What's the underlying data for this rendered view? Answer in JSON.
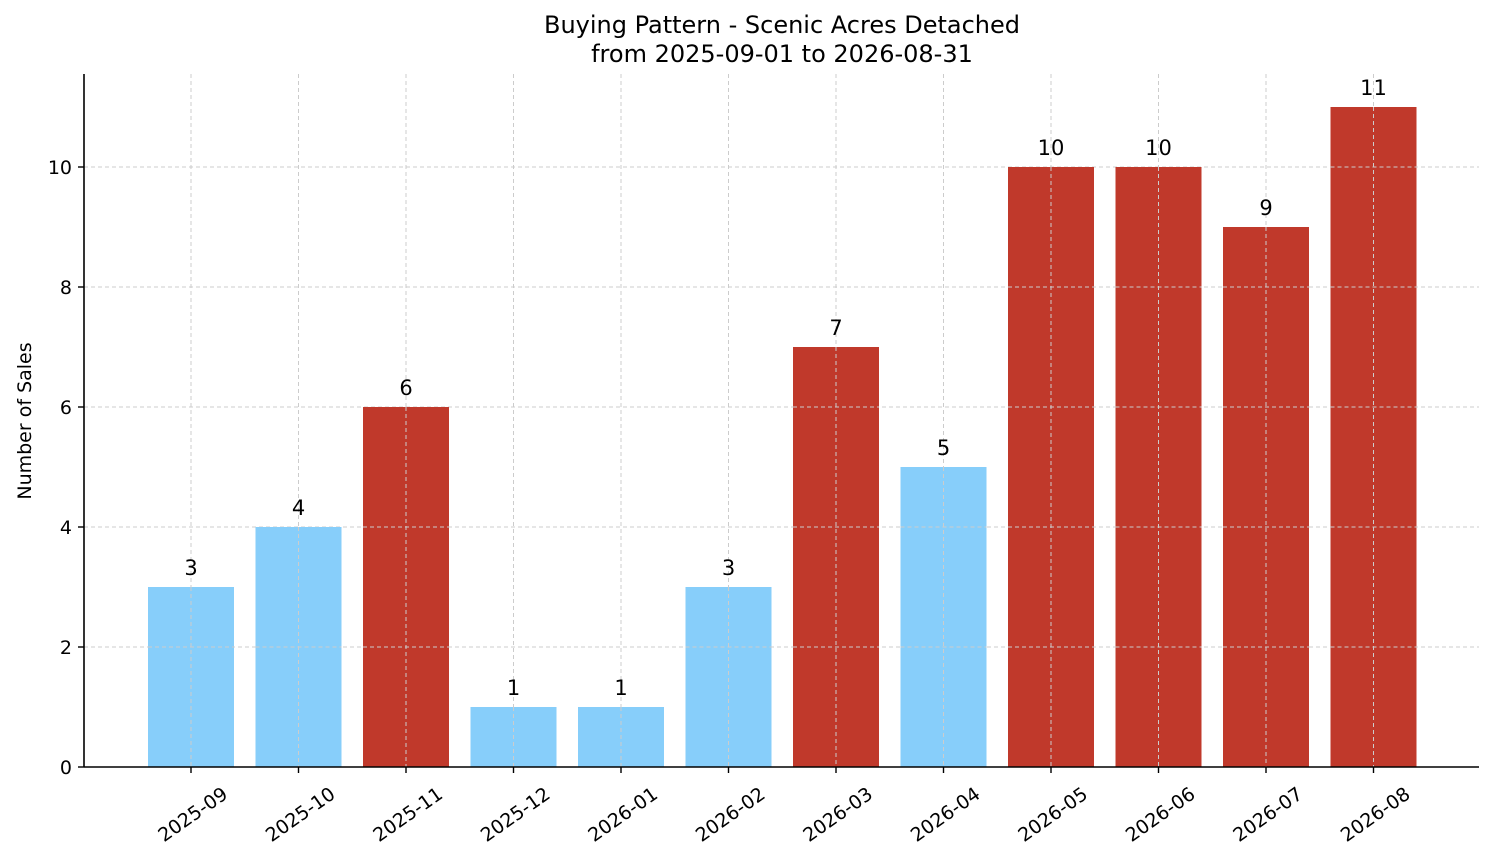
{
  "chart_data": {
    "type": "bar",
    "title": "Buying Pattern - Scenic Acres Detached",
    "subtitle": "from 2025-09-01 to 2026-08-31",
    "xlabel": "",
    "ylabel": "Number of Sales",
    "categories": [
      "2025-09",
      "2025-10",
      "2025-11",
      "2025-12",
      "2026-01",
      "2026-02",
      "2026-03",
      "2026-04",
      "2026-05",
      "2026-06",
      "2026-07",
      "2026-08"
    ],
    "values": [
      3,
      4,
      6,
      1,
      1,
      3,
      7,
      5,
      10,
      10,
      9,
      11
    ],
    "bar_colors": [
      "#87CEFA",
      "#87CEFA",
      "#C0392B",
      "#87CEFA",
      "#87CEFA",
      "#87CEFA",
      "#C0392B",
      "#87CEFA",
      "#C0392B",
      "#C0392B",
      "#C0392B",
      "#C0392B"
    ],
    "ylim": [
      0,
      11.55
    ],
    "yticks": [
      0,
      2,
      4,
      6,
      8,
      10
    ],
    "grid": true,
    "legend": "none"
  }
}
